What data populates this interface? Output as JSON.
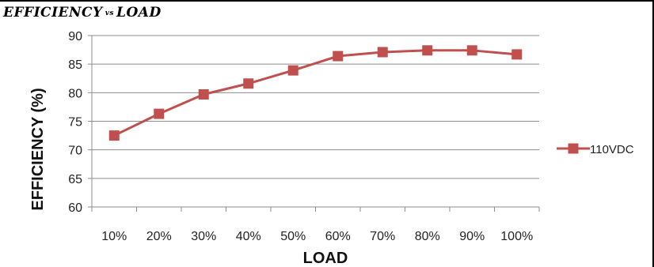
{
  "title": {
    "part1": "EFFICIENCY",
    "vs": "vs",
    "part2": "LOAD"
  },
  "chart_data": {
    "type": "line",
    "categories": [
      "10%",
      "20%",
      "30%",
      "40%",
      "50%",
      "60%",
      "70%",
      "80%",
      "90%",
      "100%"
    ],
    "series": [
      {
        "name": "110VDC",
        "values": [
          72.5,
          76.3,
          79.7,
          81.6,
          83.9,
          86.4,
          87.1,
          87.4,
          87.4,
          86.7
        ]
      }
    ],
    "xlabel": "LOAD",
    "ylabel": "EFFICIENCY (%)",
    "ylim": [
      60,
      90
    ],
    "yticks": [
      60,
      65,
      70,
      75,
      80,
      85,
      90
    ],
    "grid": true,
    "legend": "right",
    "series_color": "#c0504d",
    "marker": "square"
  }
}
